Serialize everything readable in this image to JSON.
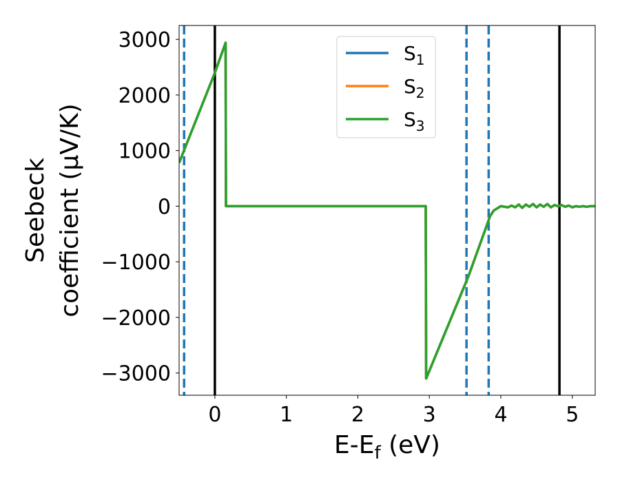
{
  "chart_data": {
    "type": "line",
    "xlabel": "E-E",
    "xlabel_sub": "f",
    "xlabel_unit": " (eV)",
    "ylabel_line1": "Seebeck",
    "ylabel_line2": "coefficient  (μV/K)",
    "xlim": [
      -0.5,
      5.32
    ],
    "ylim": [
      -3400,
      3250
    ],
    "xticks": [
      0,
      1,
      2,
      3,
      4,
      5
    ],
    "xtick_labels": [
      "0",
      "1",
      "2",
      "3",
      "4",
      "5"
    ],
    "yticks": [
      3000,
      2000,
      1000,
      0,
      -1000,
      -2000,
      -3000
    ],
    "ytick_labels": [
      "3000",
      "2000",
      "1000",
      "0",
      "−1000",
      "−2000",
      "−3000"
    ],
    "grid": false,
    "legend_position": "top-center",
    "series": [
      {
        "name": "S",
        "subscript": "1",
        "color": "#1f77b4",
        "x": [
          -0.5,
          0.0,
          0.15,
          0.155,
          2.95,
          2.955,
          3.55,
          3.85,
          3.9,
          4.0,
          4.1,
          4.15,
          4.2,
          4.25,
          4.3,
          4.35,
          4.4,
          4.45,
          4.5,
          4.55,
          4.6,
          4.65,
          4.7,
          4.75,
          4.8,
          4.85,
          4.9,
          4.95,
          5.0,
          5.05,
          5.1,
          5.15,
          5.2,
          5.25,
          5.32
        ],
        "y": [
          780,
          2400,
          2940,
          0,
          0,
          -3100,
          -1250,
          -180,
          -80,
          0,
          -20,
          10,
          -20,
          30,
          -30,
          30,
          -10,
          40,
          -20,
          30,
          -10,
          40,
          -20,
          20,
          0,
          20,
          -10,
          10,
          -20,
          0,
          -10,
          0,
          -10,
          0,
          0
        ]
      },
      {
        "name": "S",
        "subscript": "2",
        "color": "#ff7f0e",
        "x": [
          -0.5,
          0.0,
          0.15,
          0.155,
          2.95,
          2.955,
          3.55,
          3.85,
          3.9,
          4.0,
          4.1,
          4.15,
          4.2,
          4.25,
          4.3,
          4.35,
          4.4,
          4.45,
          4.5,
          4.55,
          4.6,
          4.65,
          4.7,
          4.75,
          4.8,
          4.85,
          4.9,
          4.95,
          5.0,
          5.05,
          5.1,
          5.15,
          5.2,
          5.25,
          5.32
        ],
        "y": [
          780,
          2400,
          2940,
          0,
          0,
          -3100,
          -1250,
          -180,
          -80,
          0,
          -20,
          10,
          -20,
          30,
          -30,
          30,
          -10,
          40,
          -20,
          30,
          -10,
          40,
          -20,
          20,
          0,
          20,
          -10,
          10,
          -20,
          0,
          -10,
          0,
          -10,
          0,
          0
        ]
      },
      {
        "name": "S",
        "subscript": "3",
        "color": "#2ca02c",
        "x": [
          -0.5,
          0.0,
          0.15,
          0.155,
          2.95,
          2.955,
          3.55,
          3.85,
          3.9,
          4.0,
          4.1,
          4.15,
          4.2,
          4.25,
          4.3,
          4.35,
          4.4,
          4.45,
          4.5,
          4.55,
          4.6,
          4.65,
          4.7,
          4.75,
          4.8,
          4.85,
          4.9,
          4.95,
          5.0,
          5.05,
          5.1,
          5.15,
          5.2,
          5.25,
          5.32
        ],
        "y": [
          780,
          2400,
          2940,
          0,
          0,
          -3100,
          -1250,
          -180,
          -80,
          0,
          -20,
          10,
          -20,
          30,
          -30,
          30,
          -10,
          40,
          -20,
          30,
          -10,
          40,
          -20,
          20,
          0,
          20,
          -10,
          10,
          -20,
          0,
          -10,
          0,
          -10,
          0,
          0
        ]
      }
    ],
    "vlines": [
      {
        "x": -0.43,
        "style": "dashed",
        "color": "#1f77b4"
      },
      {
        "x": 0.0,
        "style": "solid",
        "color": "#000000"
      },
      {
        "x": 3.52,
        "style": "dashed",
        "color": "#1f77b4"
      },
      {
        "x": 3.83,
        "style": "dashed",
        "color": "#1f77b4"
      },
      {
        "x": 4.82,
        "style": "solid",
        "color": "#000000"
      }
    ]
  }
}
